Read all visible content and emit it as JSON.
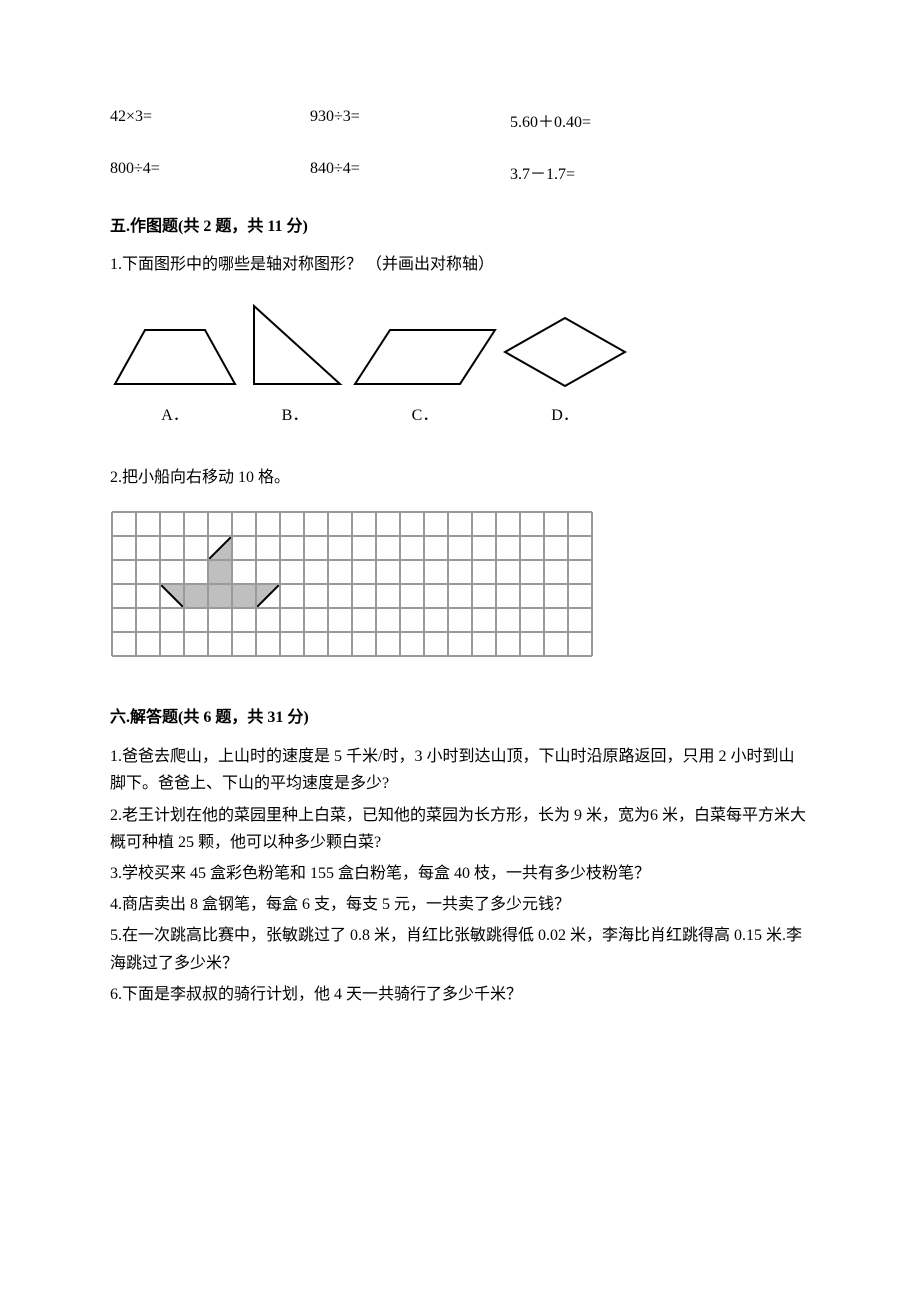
{
  "calc": {
    "rows": [
      [
        "42×3=",
        "930÷3=",
        "5.60＋0.40="
      ],
      [
        "800÷4=",
        "840÷4=",
        "3.7－1.7="
      ]
    ]
  },
  "section5": {
    "heading": "五.作图题(共 2 题，共 11 分)",
    "q1": "1.下面图形中的哪些是轴对称图形？  （并画出对称轴）",
    "shapes": {
      "labels": [
        "A．",
        "B．",
        "C．",
        "D．"
      ],
      "stroke": "#000000",
      "stroke_width": 2
    },
    "q2": "2.把小船向右移动 10 格。",
    "grid": {
      "cols": 20,
      "rows": 6,
      "cell": 24,
      "line_color": "#9a9a9a",
      "line_width": 2,
      "fill_color": "#bfbfbf",
      "boat_outline": "#000000"
    }
  },
  "section6": {
    "heading": "六.解答题(共 6 题，共 31 分)",
    "items": [
      "1.爸爸去爬山，上山时的速度是 5 千米/时，3 小时到达山顶，下山时沿原路返回，只用 2 小时到山脚下。爸爸上、下山的平均速度是多少?",
      "2.老王计划在他的菜园里种上白菜，已知他的菜园为长方形，长为 9 米，宽为6 米，白菜每平方米大概可种植 25 颗，他可以种多少颗白菜?",
      "3.学校买来 45 盒彩色粉笔和 155 盒白粉笔，每盒 40 枝，一共有多少枝粉笔？",
      "4.商店卖出 8 盒钢笔，每盒 6 支，每支 5 元，一共卖了多少元钱？",
      "5.在一次跳高比赛中，张敏跳过了 0.8 米，肖红比张敏跳得低 0.02 米，李海比肖红跳得高 0.15 米.李海跳过了多少米？",
      "6.下面是李叔叔的骑行计划，他 4 天一共骑行了多少千米？"
    ]
  }
}
